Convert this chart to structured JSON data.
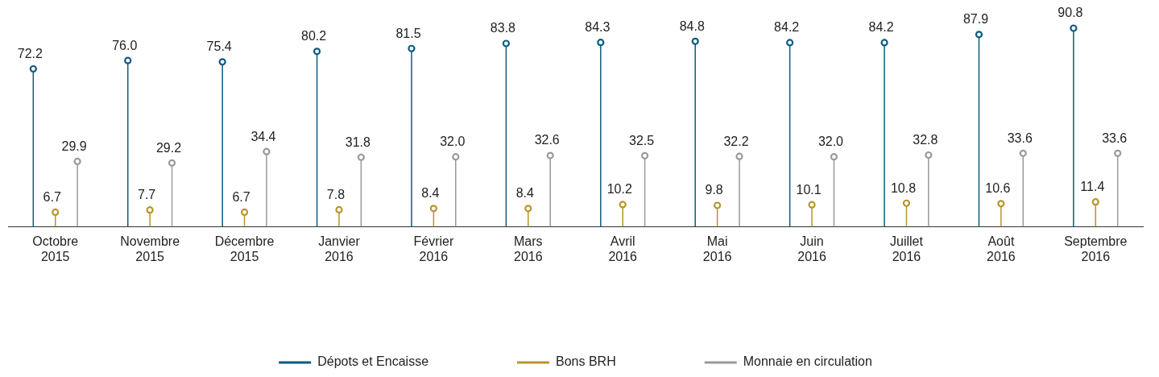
{
  "chart_data": {
    "type": "lollipop",
    "categories": [
      "Octobre\n2015",
      "Novembre\n2015",
      "Décembre\n2015",
      "Janvier\n2016",
      "Février\n2016",
      "Mars\n2016",
      "Avril\n2016",
      "Mai\n2016",
      "Juin\n2016",
      "Juillet\n2016",
      "Août\n2016",
      "Septembre\n2016"
    ],
    "series": [
      {
        "name": "Dépots et Encaisse",
        "color": "#0b5b80",
        "values": [
          72.2,
          76.0,
          75.4,
          80.2,
          81.5,
          83.8,
          84.3,
          84.8,
          84.2,
          84.2,
          87.9,
          90.8
        ],
        "value_labels": [
          "72.2",
          "76.0",
          "75.4",
          "80.2",
          "81.5",
          "83.8",
          "84.3",
          "84.8",
          "84.2",
          "84.2",
          "87.9",
          "90.8"
        ]
      },
      {
        "name": "Bons BRH",
        "color": "#b8952a",
        "values": [
          6.7,
          7.7,
          6.7,
          7.8,
          8.4,
          8.4,
          10.2,
          9.8,
          10.1,
          10.8,
          10.6,
          11.4
        ],
        "value_labels": [
          "6.7",
          "7.7",
          "6.7",
          "7.8",
          "8.4",
          "8.4",
          "10.2",
          "9.8",
          "10.1",
          "10.8",
          "10.6",
          "11.4"
        ]
      },
      {
        "name": "Monnaie en circulation",
        "color": "#9a9a9a",
        "values": [
          29.9,
          29.2,
          34.4,
          31.8,
          32.0,
          32.6,
          32.5,
          32.2,
          32.0,
          32.8,
          33.6,
          33.6
        ],
        "value_labels": [
          "29.9",
          "29.2",
          "34.4",
          "31.8",
          "32.0",
          "32.6",
          "32.5",
          "32.2",
          "32.0",
          "32.8",
          "33.6",
          "33.6"
        ]
      }
    ],
    "legend": "bottom",
    "marker": "circle",
    "grid": false
  }
}
